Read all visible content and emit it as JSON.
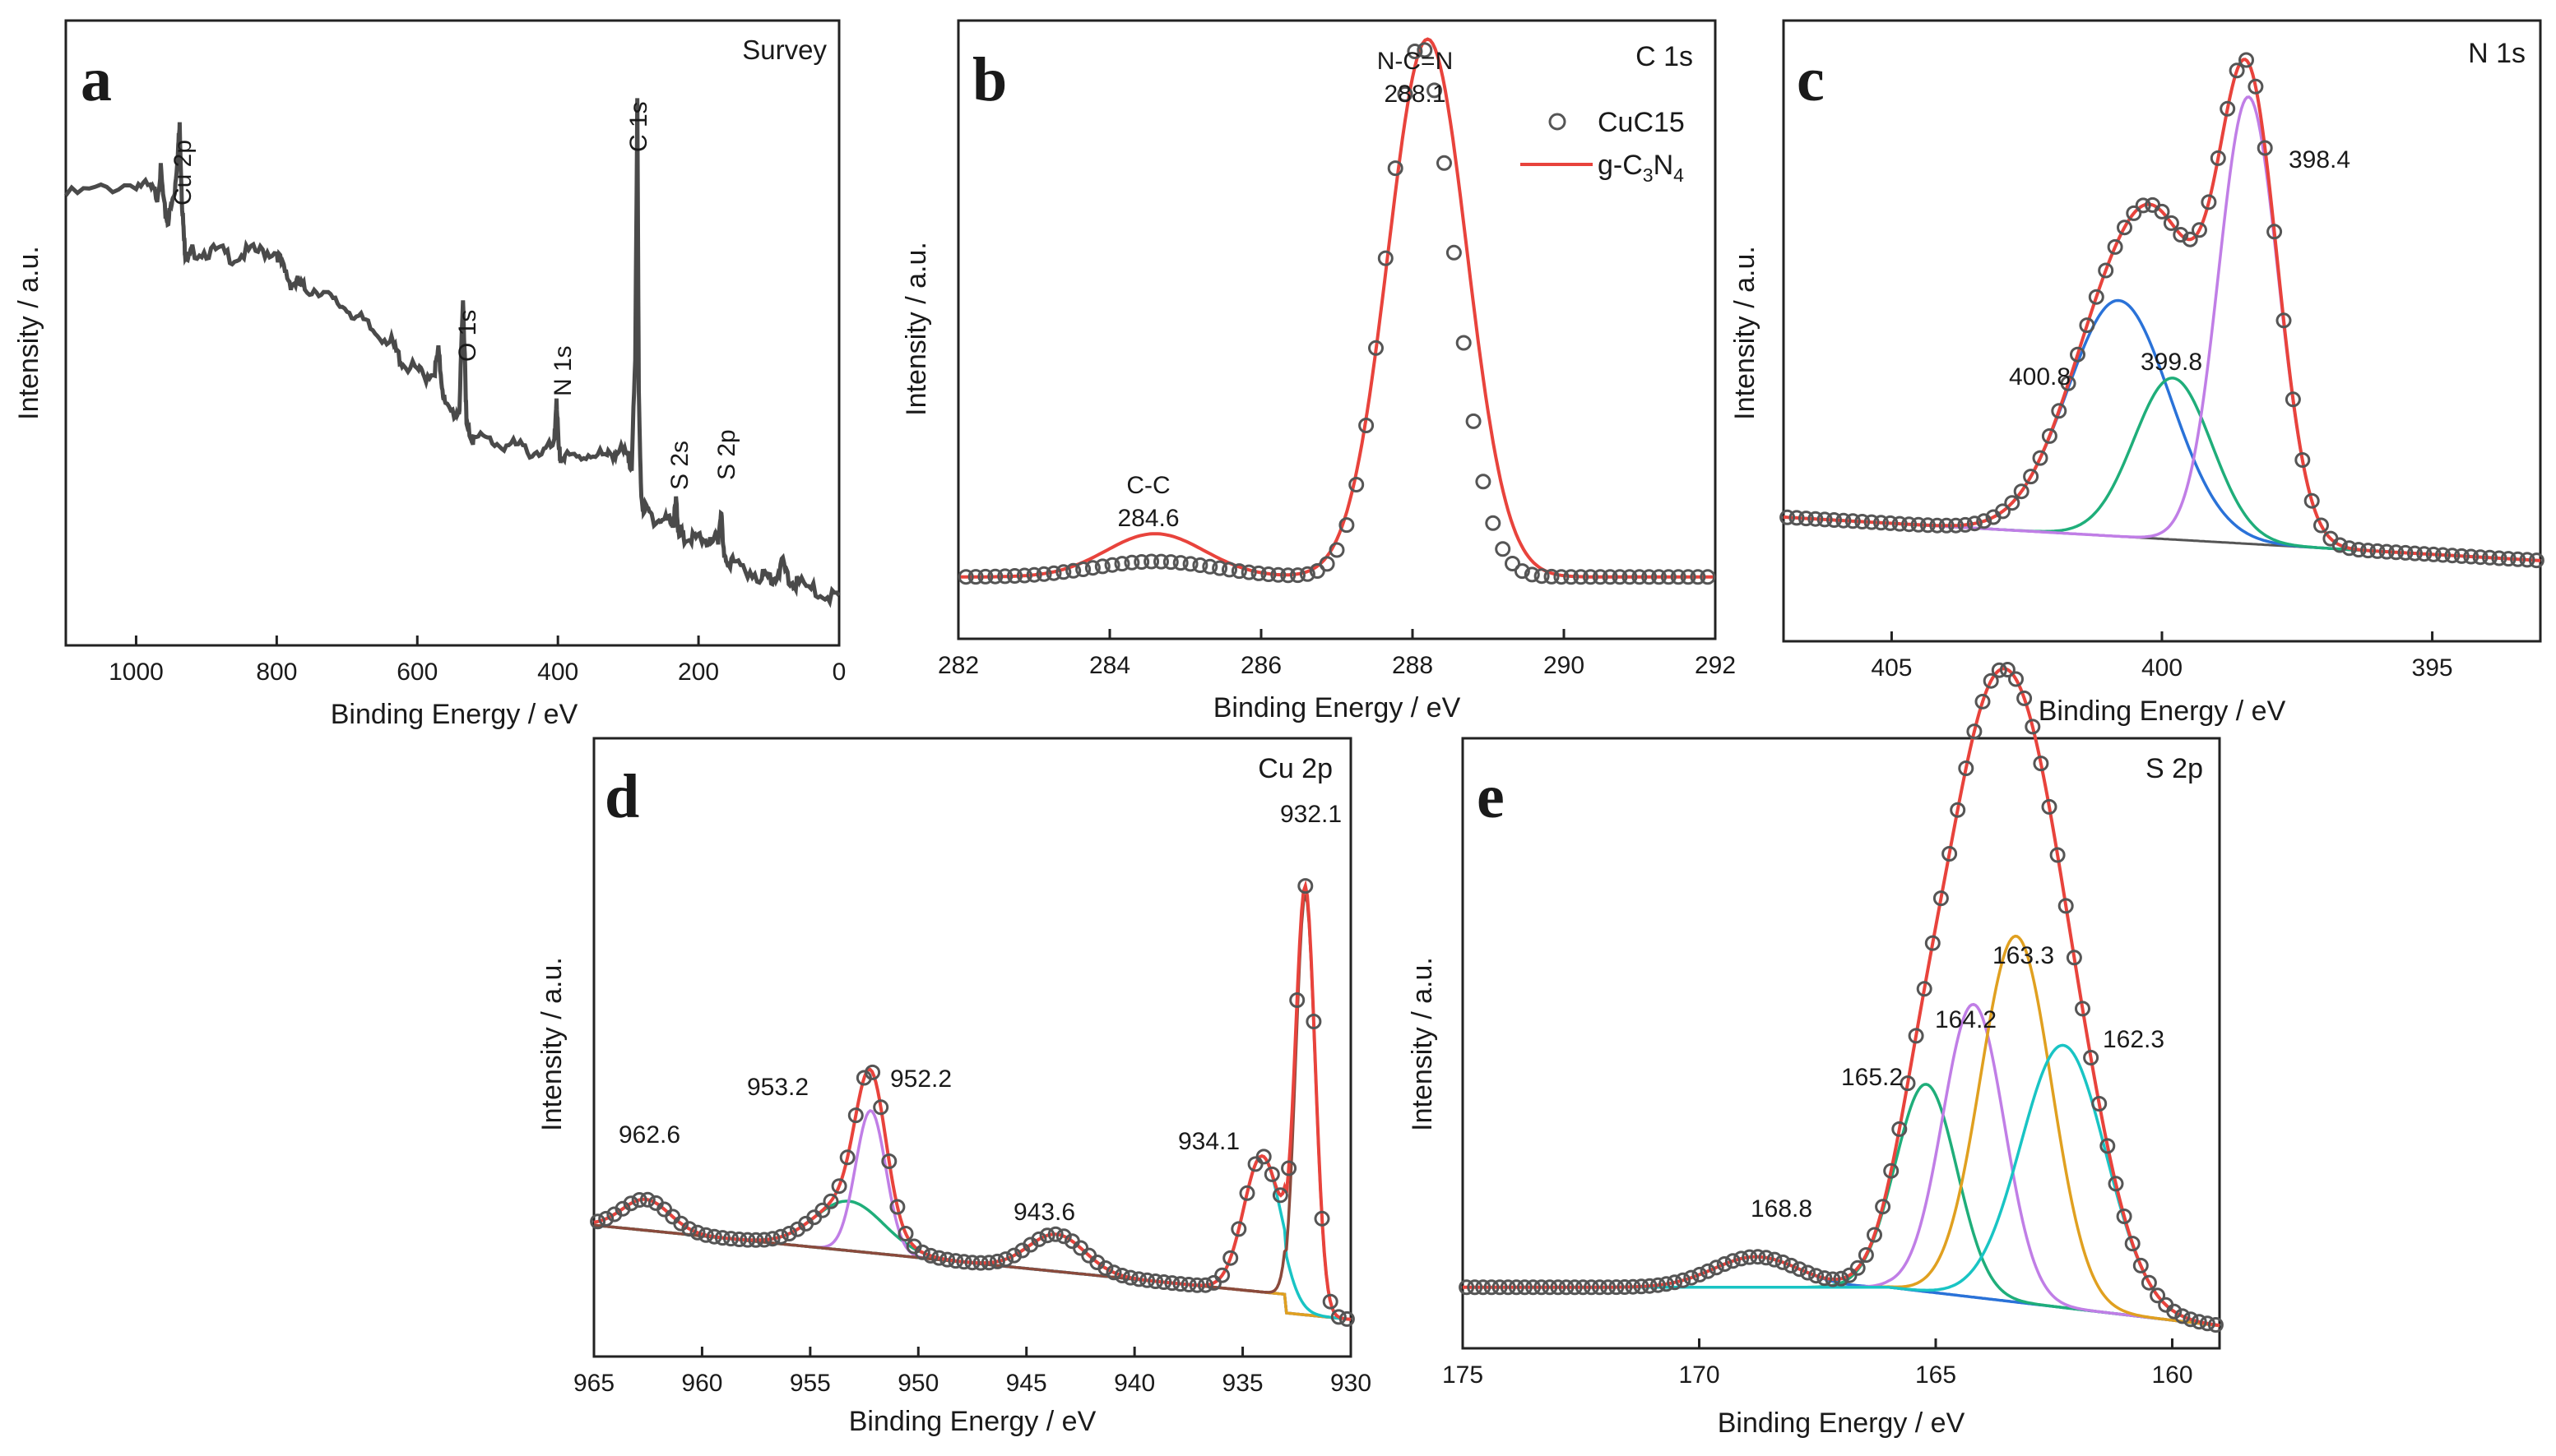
{
  "figure": {
    "axis_title_x": "Binding Energy / eV",
    "axis_title_y": "Intensity / a.u.",
    "legend": {
      "marker_label": "CuC15",
      "line_label": "g-C3N4",
      "line_sub": "3",
      "line_sub2": "4"
    }
  },
  "chart_data": [
    {
      "type": "line",
      "panel": "a",
      "title": "Survey",
      "xlabel": "Binding Energy / eV",
      "ylabel": "Intensity / a.u.",
      "xlim": [
        1100,
        0
      ],
      "ylim": [
        0,
        100
      ],
      "x_ticks": [
        "1000",
        "800",
        "600",
        "400",
        "200",
        "0"
      ],
      "x": [
        1100,
        1050,
        1000,
        980,
        970,
        965,
        960,
        955,
        950,
        945,
        940,
        938,
        935,
        932,
        930,
        925,
        920,
        900,
        880,
        860,
        840,
        820,
        800,
        790,
        780,
        770,
        760,
        740,
        720,
        700,
        680,
        660,
        640,
        630,
        620,
        600,
        590,
        575,
        570,
        565,
        560,
        545,
        540,
        535,
        532,
        530,
        525,
        520,
        500,
        480,
        460,
        440,
        420,
        405,
        402,
        399,
        396,
        390,
        370,
        350,
        330,
        320,
        310,
        300,
        295,
        290,
        287,
        285,
        282,
        278,
        270,
        260,
        250,
        240,
        235,
        232,
        229,
        226,
        220,
        210,
        200,
        190,
        180,
        172,
        168,
        165,
        160,
        150,
        130,
        110,
        100,
        90,
        80,
        70,
        60,
        40,
        20,
        0
      ],
      "values": [
        72,
        73,
        74,
        73,
        72,
        76,
        70,
        68,
        70,
        73,
        80,
        83,
        72,
        65,
        63,
        62,
        63,
        63,
        63,
        62,
        63,
        63,
        63,
        60,
        58,
        58,
        57,
        57,
        55,
        54,
        52,
        50,
        49,
        47,
        45,
        44,
        43,
        44,
        47,
        42,
        38,
        37,
        38,
        55,
        45,
        35,
        34,
        33,
        33,
        32,
        32,
        31,
        31,
        32,
        40,
        31,
        30,
        30,
        30,
        31,
        30,
        31,
        31,
        30,
        29,
        45,
        88,
        40,
        25,
        22,
        21,
        20,
        20,
        20,
        20,
        23,
        19,
        18,
        17,
        17,
        17,
        17,
        16,
        17,
        22,
        15,
        14,
        13,
        12,
        11,
        11,
        11,
        13,
        10,
        10,
        9,
        8,
        8
      ],
      "annotations": [
        "Cu 2p",
        "O 1s",
        "N 1s",
        "C 1s",
        "S 2s",
        "S 2p"
      ]
    },
    {
      "type": "line",
      "panel": "b",
      "title": "C 1s",
      "xlabel": "Binding Energy / eV",
      "ylabel": "Intensity / a.u.",
      "xlim": [
        282,
        292
      ],
      "ylim": [
        0,
        100
      ],
      "x_ticks": [
        "282",
        "284",
        "286",
        "288",
        "290",
        "292"
      ],
      "series": [
        {
          "name": "CuC15",
          "kind": "markers",
          "baseline": 10,
          "peaks": [
            [
              284.6,
              2.5,
              0.8
            ],
            [
              288.1,
              86,
              0.45
            ]
          ]
        },
        {
          "name": "g-C3N4",
          "kind": "line",
          "color": "#e8433c",
          "baseline": 10,
          "peaks": [
            [
              284.6,
              7,
              0.65
            ],
            [
              288.2,
              87,
              0.52
            ]
          ]
        }
      ],
      "annotations": [
        {
          "label": "C-C",
          "value": "284.6"
        },
        {
          "label": "N-C=N",
          "value": "288.1"
        }
      ]
    },
    {
      "type": "line",
      "panel": "c",
      "title": "N 1s",
      "xlabel": "Binding Energy / eV",
      "ylabel": "Intensity / a.u.",
      "xlim": [
        407,
        393
      ],
      "ylim": [
        0,
        100
      ],
      "x_ticks": [
        "405",
        "400",
        "395"
      ],
      "baseline": [
        [
          407,
          20
        ],
        [
          393,
          13
        ]
      ],
      "series": [
        {
          "name": "data",
          "kind": "markers"
        },
        {
          "name": "fit envelope",
          "color": "#e8433c"
        },
        {
          "name": "400.8",
          "color": "#2a72d8",
          "center": 400.8,
          "height": 38,
          "sigma": 0.95
        },
        {
          "name": "399.8",
          "color": "#1fae7a",
          "center": 399.8,
          "height": 26,
          "sigma": 0.72
        },
        {
          "name": "398.4",
          "color": "#c07ee6",
          "center": 398.4,
          "height": 72,
          "sigma": 0.55
        },
        {
          "name": "background",
          "color": "#444444"
        }
      ],
      "annotations": [
        "400.8",
        "399.8",
        "398.4"
      ]
    },
    {
      "type": "line",
      "panel": "d",
      "title": "Cu 2p",
      "xlabel": "Binding Energy / eV",
      "ylabel": "Intensity / a.u.",
      "xlim": [
        965,
        930
      ],
      "ylim": [
        0,
        100
      ],
      "x_ticks": [
        "965",
        "960",
        "955",
        "950",
        "945",
        "940",
        "935",
        "930"
      ],
      "series": [
        {
          "name": "data",
          "kind": "markers"
        },
        {
          "name": "fit envelope",
          "color": "#e8433c"
        },
        {
          "name": "962.6",
          "color": "#2a72d8",
          "center": 962.6,
          "height": 5,
          "sigma": 1.1
        },
        {
          "name": "953.2",
          "color": "#1fae7a",
          "center": 953.2,
          "height": 8,
          "sigma": 1.6
        },
        {
          "name": "952.2",
          "color": "#c07ee6",
          "center": 952.2,
          "height": 23,
          "sigma": 0.7
        },
        {
          "name": "943.6",
          "color": "#e0a020",
          "center": 943.6,
          "height": 6,
          "sigma": 1.3
        },
        {
          "name": "934.1",
          "color": "#19c4c4",
          "center": 934.1,
          "height": 22,
          "sigma": 0.85
        },
        {
          "name": "932.1",
          "color": "#8b4a3c",
          "center": 932.1,
          "height": 68,
          "sigma": 0.45
        }
      ],
      "annotations": [
        "962.6",
        "953.2",
        "952.2",
        "943.6",
        "934.1",
        "932.1"
      ]
    },
    {
      "type": "line",
      "panel": "e",
      "title": "S 2p",
      "xlabel": "Binding Energy / eV",
      "ylabel": "Intensity / a.u.",
      "xlim": [
        175,
        159
      ],
      "ylim": [
        0,
        100
      ],
      "x_ticks": [
        "175",
        "170",
        "165",
        "160"
      ],
      "series": [
        {
          "name": "data",
          "kind": "markers"
        },
        {
          "name": "fit envelope",
          "color": "#e8433c"
        },
        {
          "name": "168.8",
          "color": "#2a72d8",
          "center": 168.8,
          "height": 5,
          "sigma": 0.9
        },
        {
          "name": "165.2",
          "color": "#1fae7a",
          "center": 165.2,
          "height": 34,
          "sigma": 0.65
        },
        {
          "name": "164.2",
          "color": "#c07ee6",
          "center": 164.2,
          "height": 48,
          "sigma": 0.65
        },
        {
          "name": "163.3",
          "color": "#e0a020",
          "center": 163.3,
          "height": 60,
          "sigma": 0.75
        },
        {
          "name": "162.3",
          "color": "#19c4c4",
          "center": 162.3,
          "height": 43,
          "sigma": 0.9
        }
      ],
      "annotations": [
        "168.8",
        "165.2",
        "164.2",
        "163.3",
        "162.3"
      ]
    }
  ]
}
